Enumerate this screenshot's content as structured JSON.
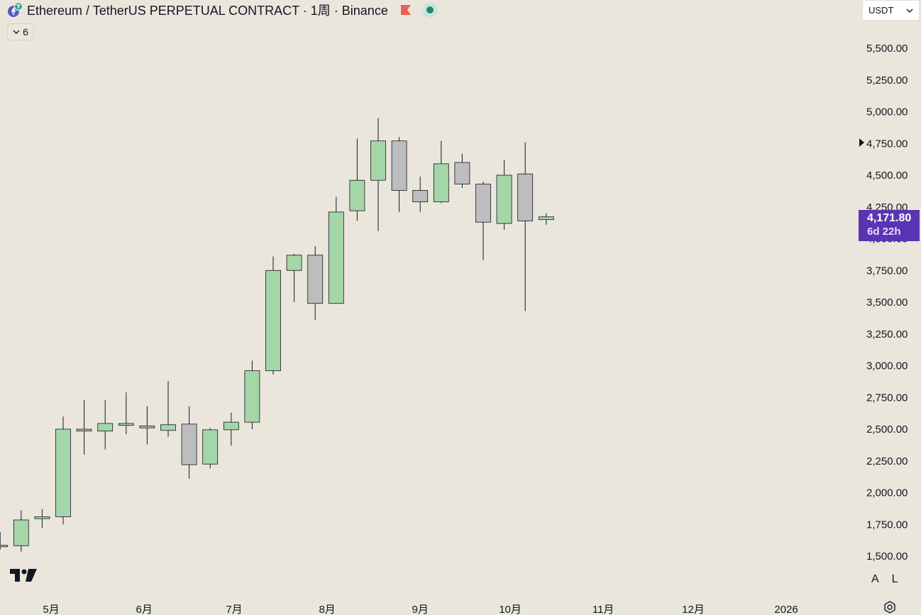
{
  "header": {
    "title": "Ethereum  /  TetherUS PERPETUAL CONTRACT · 1周 · Binance",
    "collapse_count": "6"
  },
  "currency": {
    "selected": "USDT"
  },
  "price_badge": {
    "price": "4,171.80",
    "countdown": "6d 22h"
  },
  "axis_buttons": {
    "auto": "A",
    "log": "L"
  },
  "colors": {
    "up": "#a5d6a7",
    "down": "#bdbdbd",
    "badge": "#5b34b3"
  },
  "chart_data": {
    "type": "candlestick",
    "interval": "weekly",
    "y_ticks": [
      "5,500.00",
      "5,250.00",
      "5,000.00",
      "4,750.00",
      "4,500.00",
      "4,250.00",
      "4,000.00",
      "3,750.00",
      "3,500.00",
      "3,250.00",
      "3,000.00",
      "2,750.00",
      "2,500.00",
      "2,250.00",
      "2,000.00",
      "1,750.00",
      "1,500.00"
    ],
    "ylim": [
      1400,
      5700
    ],
    "x_ticks": [
      {
        "label": "5月",
        "date": "2025-05-01"
      },
      {
        "label": "6月",
        "date": "2025-06-01"
      },
      {
        "label": "7月",
        "date": "2025-07-01"
      },
      {
        "label": "8月",
        "date": "2025-08-01"
      },
      {
        "label": "9月",
        "date": "2025-09-01"
      },
      {
        "label": "10月",
        "date": "2025-10-01"
      },
      {
        "label": "11月",
        "date": "2025-11-01"
      },
      {
        "label": "12月",
        "date": "2025-12-01"
      },
      {
        "label": "2026",
        "date": "2026-01-01"
      }
    ],
    "candles": [
      {
        "date": "2025-04-14",
        "open": 1585,
        "high": 1690,
        "low": 1550,
        "close": 1578
      },
      {
        "date": "2025-04-21",
        "open": 1582,
        "high": 1860,
        "low": 1535,
        "close": 1785
      },
      {
        "date": "2025-04-28",
        "open": 1795,
        "high": 1870,
        "low": 1720,
        "close": 1810
      },
      {
        "date": "2025-05-05",
        "open": 1810,
        "high": 2600,
        "low": 1750,
        "close": 2500
      },
      {
        "date": "2025-05-12",
        "open": 2500,
        "high": 2730,
        "low": 2300,
        "close": 2485
      },
      {
        "date": "2025-05-19",
        "open": 2485,
        "high": 2730,
        "low": 2340,
        "close": 2545
      },
      {
        "date": "2025-05-26",
        "open": 2530,
        "high": 2790,
        "low": 2460,
        "close": 2545
      },
      {
        "date": "2025-06-02",
        "open": 2525,
        "high": 2680,
        "low": 2380,
        "close": 2510
      },
      {
        "date": "2025-06-09",
        "open": 2490,
        "high": 2880,
        "low": 2440,
        "close": 2535
      },
      {
        "date": "2025-06-16",
        "open": 2540,
        "high": 2680,
        "low": 2110,
        "close": 2220
      },
      {
        "date": "2025-06-23",
        "open": 2225,
        "high": 2510,
        "low": 2190,
        "close": 2495
      },
      {
        "date": "2025-06-30",
        "open": 2495,
        "high": 2630,
        "low": 2370,
        "close": 2555
      },
      {
        "date": "2025-07-07",
        "open": 2555,
        "high": 3040,
        "low": 2500,
        "close": 2960
      },
      {
        "date": "2025-07-14",
        "open": 2960,
        "high": 3860,
        "low": 2930,
        "close": 3750
      },
      {
        "date": "2025-07-21",
        "open": 3750,
        "high": 3880,
        "low": 3500,
        "close": 3870
      },
      {
        "date": "2025-07-28",
        "open": 3870,
        "high": 3940,
        "low": 3360,
        "close": 3490
      },
      {
        "date": "2025-08-04",
        "open": 3490,
        "high": 4330,
        "low": 3490,
        "close": 4210
      },
      {
        "date": "2025-08-11",
        "open": 4220,
        "high": 4790,
        "low": 4140,
        "close": 4460
      },
      {
        "date": "2025-08-18",
        "open": 4460,
        "high": 4950,
        "low": 4060,
        "close": 4770
      },
      {
        "date": "2025-08-25",
        "open": 4770,
        "high": 4800,
        "low": 4210,
        "close": 4380
      },
      {
        "date": "2025-09-01",
        "open": 4380,
        "high": 4490,
        "low": 4210,
        "close": 4290
      },
      {
        "date": "2025-09-08",
        "open": 4290,
        "high": 4770,
        "low": 4280,
        "close": 4590
      },
      {
        "date": "2025-09-15",
        "open": 4600,
        "high": 4670,
        "low": 4400,
        "close": 4430
      },
      {
        "date": "2025-09-22",
        "open": 4430,
        "high": 4450,
        "low": 3830,
        "close": 4130
      },
      {
        "date": "2025-09-29",
        "open": 4120,
        "high": 4620,
        "low": 4070,
        "close": 4500
      },
      {
        "date": "2025-10-06",
        "open": 4510,
        "high": 4760,
        "low": 3430,
        "close": 4140
      },
      {
        "date": "2025-10-13",
        "open": 4150,
        "high": 4200,
        "low": 4110,
        "close": 4172
      }
    ]
  }
}
